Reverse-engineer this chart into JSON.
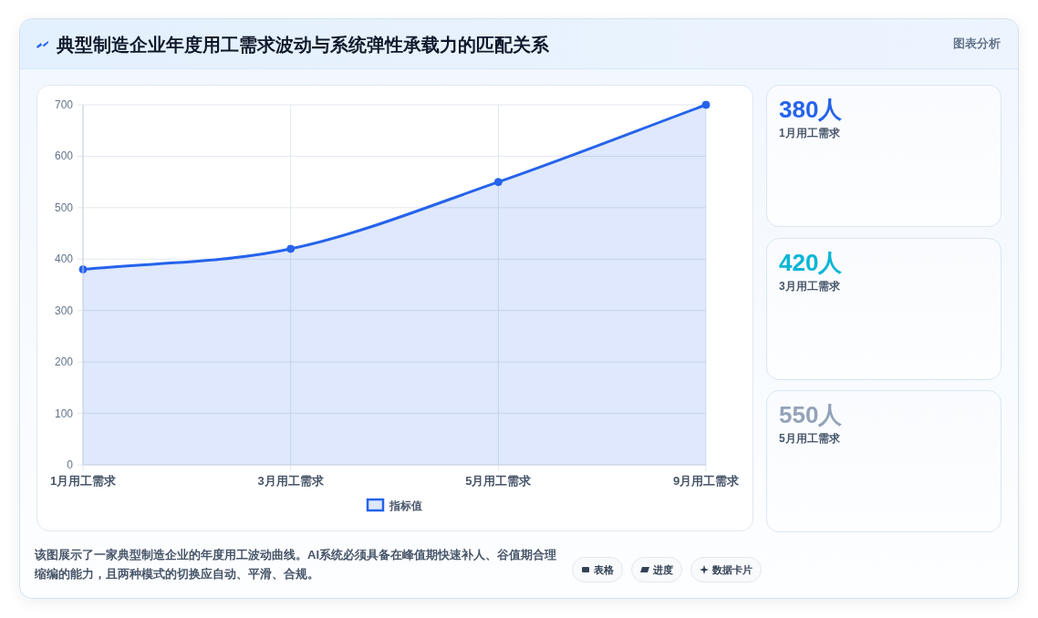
{
  "chart_data": [
    {
      "type": "area",
      "title": "典型制造企业年度用工需求波动与系统弹性承载力的匹配关系",
      "categories": [
        "1月用工需求",
        "3月用工需求",
        "5月用工需求",
        "9月用工需求"
      ],
      "series": [
        {
          "name": "指标值",
          "color": "#2563eb",
          "values": [
            380,
            420,
            550,
            700
          ]
        }
      ],
      "ylim": [
        0,
        700
      ],
      "yticks": [
        0,
        100,
        200,
        300,
        400,
        500,
        600,
        700
      ],
      "grid": true,
      "legend": "bottom",
      "marker": "circle",
      "annotations": [
        "图表分析",
        "该图展示了一家典型制造企业的年度用工波动曲线。AI系统必须具备在峰值期快速补人、谷值期合理缩编的能力，且两种模式的切换应自动、平滑、合规。",
        "表格",
        "进度",
        "数据卡片"
      ]
    },
    {
      "type": "other",
      "title": "380人",
      "subtitle": "1月用工需求",
      "color": "#2563eb"
    },
    {
      "type": "other",
      "title": "420人",
      "subtitle": "3月用工需求",
      "color": "#06b6d4"
    },
    {
      "type": "other",
      "title": "550人",
      "subtitle": "5月用工需求",
      "color": "#94a3b8"
    }
  ]
}
